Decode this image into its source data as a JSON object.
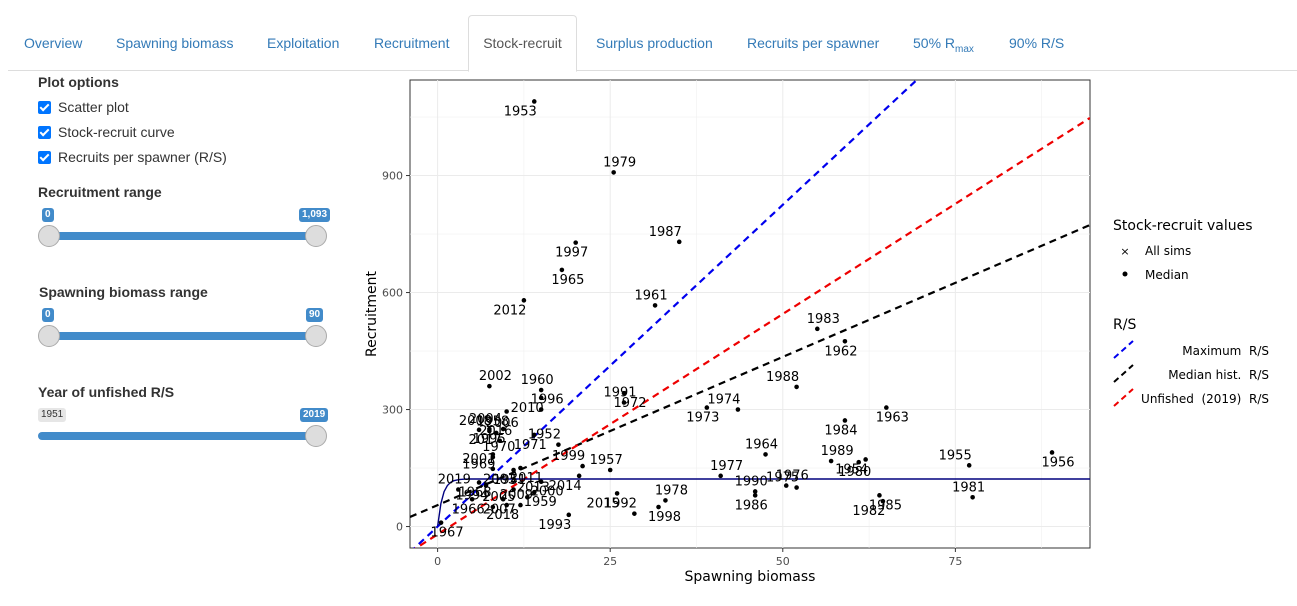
{
  "tabs": [
    {
      "label": "Overview"
    },
    {
      "label": "Spawning biomass"
    },
    {
      "label": "Exploitation"
    },
    {
      "label": "Recruitment"
    },
    {
      "label": "Stock-recruit"
    },
    {
      "label": "Surplus production"
    },
    {
      "label": "Recruits per spawner"
    },
    {
      "label": "50% R",
      "sub": "max"
    },
    {
      "label": "90% R/S"
    }
  ],
  "sidebar": {
    "plot_options_title": "Plot options",
    "checkboxes": [
      {
        "label": "Scatter plot",
        "checked": true
      },
      {
        "label": "Stock-recruit curve",
        "checked": true
      },
      {
        "label": "Recruits per spawner (R/S)",
        "checked": true
      }
    ],
    "recruitment_range": {
      "title": "Recruitment range",
      "min": "0",
      "max": "1,093"
    },
    "biomass_range": {
      "title": "Spawning biomass range",
      "min": "0",
      "max": "90"
    },
    "unfished_year": {
      "title": "Year of unfished R/S",
      "min": "1951",
      "value": "2019"
    }
  },
  "legend": {
    "title1": "Stock-recruit values",
    "all_sims": "All sims",
    "median": "Median",
    "title2": "R/S",
    "max_rs": "Maximum  R/S",
    "median_hist": "Median hist.  R/S",
    "unfished": "Unfished  (2019)  R/S",
    "colors": {
      "max": "#0000ee",
      "median_hist": "#000000",
      "unfished": "#ee0000",
      "curve": "#00007f"
    }
  },
  "chart_data": {
    "type": "scatter",
    "xlabel": "Spawning biomass",
    "ylabel": "Recruitment",
    "xlim": [
      -4,
      94.5
    ],
    "ylim": [
      -55,
      1145
    ],
    "xticks": [
      0,
      25,
      50,
      75
    ],
    "yticks": [
      0,
      300,
      600,
      900
    ],
    "points": [
      {
        "year": "1953",
        "x": 14,
        "y": 1090
      },
      {
        "year": "1979",
        "x": 25.5,
        "y": 908
      },
      {
        "year": "1997",
        "x": 20,
        "y": 728
      },
      {
        "year": "1987",
        "x": 35,
        "y": 730
      },
      {
        "year": "1965",
        "x": 18,
        "y": 658
      },
      {
        "year": "1961",
        "x": 31.5,
        "y": 567
      },
      {
        "year": "2012",
        "x": 12.5,
        "y": 580
      },
      {
        "year": "1983",
        "x": 55,
        "y": 507
      },
      {
        "year": "1962",
        "x": 59,
        "y": 475
      },
      {
        "year": "1988",
        "x": 52,
        "y": 358
      },
      {
        "year": "1972",
        "x": 27,
        "y": 342
      },
      {
        "year": "1960",
        "x": 15,
        "y": 350
      },
      {
        "year": "2010",
        "x": 15,
        "y": 330
      },
      {
        "year": "2002",
        "x": 7.5,
        "y": 360
      },
      {
        "year": "1973",
        "x": 39,
        "y": 305
      },
      {
        "year": "1974",
        "x": 43.5,
        "y": 300
      },
      {
        "year": "1963",
        "x": 65,
        "y": 305
      },
      {
        "year": "1991",
        "x": 27,
        "y": 318
      },
      {
        "year": "1958",
        "x": 10,
        "y": 295
      },
      {
        "year": "1996",
        "x": 15,
        "y": 300
      },
      {
        "year": "1971",
        "x": 14,
        "y": 235
      },
      {
        "year": "2008",
        "x": 7.5,
        "y": 245
      },
      {
        "year": "2017",
        "x": 6,
        "y": 248
      },
      {
        "year": "2004",
        "x": 7.5,
        "y": 250
      },
      {
        "year": "1995",
        "x": 9.5,
        "y": 250
      },
      {
        "year": "2006",
        "x": 8.5,
        "y": 240
      },
      {
        "year": "1984",
        "x": 59,
        "y": 272
      },
      {
        "year": "1952",
        "x": 17.5,
        "y": 210
      },
      {
        "year": "2011",
        "x": 12,
        "y": 150
      },
      {
        "year": "1964",
        "x": 47.5,
        "y": 185
      },
      {
        "year": "1954",
        "x": 62,
        "y": 172
      },
      {
        "year": "1989",
        "x": 57,
        "y": 168
      },
      {
        "year": "1980",
        "x": 61,
        "y": 165
      },
      {
        "year": "1955",
        "x": 77,
        "y": 157
      },
      {
        "year": "1956",
        "x": 89,
        "y": 190
      },
      {
        "year": "2016",
        "x": 9,
        "y": 220
      },
      {
        "year": "1969",
        "x": 8,
        "y": 185
      },
      {
        "year": "1970",
        "x": 8,
        "y": 178
      },
      {
        "year": "1951",
        "x": 11,
        "y": 145
      },
      {
        "year": "1999",
        "x": 21,
        "y": 155
      },
      {
        "year": "2000",
        "x": 15,
        "y": 115
      },
      {
        "year": "1957",
        "x": 25,
        "y": 145
      },
      {
        "year": "2014",
        "x": 20.5,
        "y": 130
      },
      {
        "year": "1977",
        "x": 41,
        "y": 130
      },
      {
        "year": "1968",
        "x": 6,
        "y": 113
      },
      {
        "year": "2001",
        "x": 8,
        "y": 148
      },
      {
        "year": "1959",
        "x": 14,
        "y": 88
      },
      {
        "year": "2019",
        "x": 3,
        "y": 95
      },
      {
        "year": "1994",
        "x": 7,
        "y": 105
      },
      {
        "year": "1976",
        "x": 50.5,
        "y": 105
      },
      {
        "year": "1986",
        "x": 46,
        "y": 80
      },
      {
        "year": "1975",
        "x": 52,
        "y": 100
      },
      {
        "year": "1985",
        "x": 64,
        "y": 80
      },
      {
        "year": "1981",
        "x": 77.5,
        "y": 75
      },
      {
        "year": "2015",
        "x": 26,
        "y": 85
      },
      {
        "year": "1978",
        "x": 33,
        "y": 67
      },
      {
        "year": "1966",
        "x": 5,
        "y": 70
      },
      {
        "year": "2003",
        "x": 11,
        "y": 95
      },
      {
        "year": "1998",
        "x": 32,
        "y": 50
      },
      {
        "year": "1990",
        "x": 46,
        "y": 90
      },
      {
        "year": "1982",
        "x": 64.5,
        "y": 65
      },
      {
        "year": "2013",
        "x": 13,
        "y": 75
      },
      {
        "year": "2007",
        "x": 9.5,
        "y": 70
      },
      {
        "year": "1992",
        "x": 28.5,
        "y": 33
      },
      {
        "year": "1967",
        "x": 0.5,
        "y": 10
      },
      {
        "year": "2009",
        "x": 12,
        "y": 55
      },
      {
        "year": "1993",
        "x": 19,
        "y": 30
      },
      {
        "year": "2005",
        "x": 8,
        "y": 50
      },
      {
        "year": "2018",
        "x": 10,
        "y": 55
      }
    ],
    "max_rs_slope": 16.5,
    "median_hist_slope": 7.6,
    "median_hist_intercept": 55,
    "unfished_slope": 11.3,
    "unfished_intercept": -20,
    "curve": {
      "rmax": 122,
      "k": 1.4
    }
  }
}
